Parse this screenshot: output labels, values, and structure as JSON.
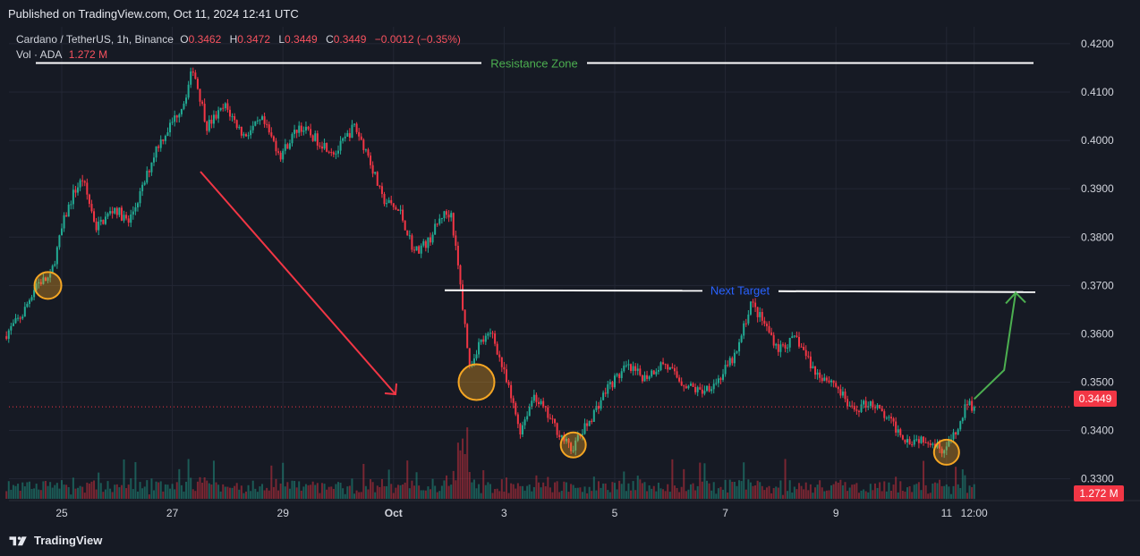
{
  "header": {
    "published": "Published on TradingView.com, Oct 11, 2024 12:41 UTC"
  },
  "legend": {
    "symbol": "Cardano / TetherUS, 1h, Binance",
    "o_label": "O",
    "o_value": "0.3462",
    "h_label": "H",
    "h_value": "0.3472",
    "l_label": "L",
    "l_value": "0.3449",
    "c_label": "C",
    "c_value": "0.3449",
    "change": "−0.0012 (−0.35%)",
    "vol_label": "Vol · ADA",
    "vol_value": "1.272 M"
  },
  "price_badge": "0.3449",
  "volume_badge": "1.272 M",
  "annotations": {
    "resistance_label": "Resistance Zone",
    "target_label": "Next Target"
  },
  "footer": {
    "brand": "TradingView"
  },
  "colors": {
    "background": "#161a24",
    "grid": "#232734",
    "up": "#22ab94",
    "down": "#f23645",
    "resistance_text": "#4caf50",
    "target_text": "#2962ff",
    "arrow_down": "#f23645",
    "arrow_up": "#4caf50",
    "circle": "#f5a623"
  },
  "chart_data": {
    "type": "candlestick",
    "symbol": "Cardano / TetherUS",
    "interval": "1h",
    "exchange": "Binance",
    "y_ticks": [
      0.33,
      0.34,
      0.35,
      0.36,
      0.37,
      0.38,
      0.39,
      0.4,
      0.41,
      0.42
    ],
    "y_tick_labels": [
      "0.3300",
      "0.3400",
      "0.3500",
      "0.3600",
      "0.3700",
      "0.3800",
      "0.3900",
      "0.4000",
      "0.4100",
      "0.4200"
    ],
    "ylim": [
      0.3255,
      0.4235
    ],
    "x_tick_labels": [
      "25",
      "27",
      "29",
      "Oct",
      "3",
      "5",
      "7",
      "9",
      "11",
      "12:00"
    ],
    "x_tick_dates": [
      "2024-09-25",
      "2024-09-27",
      "2024-09-29",
      "2024-10-01",
      "2024-10-03",
      "2024-10-05",
      "2024-10-07",
      "2024-10-09",
      "2024-10-11",
      "2024-10-11 12:00"
    ],
    "path_points": [
      {
        "t": "2024-09-24 00:00",
        "p": 0.3595
      },
      {
        "t": "2024-09-24 08:00",
        "p": 0.364
      },
      {
        "t": "2024-09-24 14:00",
        "p": 0.3705
      },
      {
        "t": "2024-09-24 20:00",
        "p": 0.3715
      },
      {
        "t": "2024-09-25 02:00",
        "p": 0.3835
      },
      {
        "t": "2024-09-25 06:00",
        "p": 0.389
      },
      {
        "t": "2024-09-25 10:00",
        "p": 0.392
      },
      {
        "t": "2024-09-25 16:00",
        "p": 0.382
      },
      {
        "t": "2024-09-26 00:00",
        "p": 0.386
      },
      {
        "t": "2024-09-26 06:00",
        "p": 0.383
      },
      {
        "t": "2024-09-26 12:00",
        "p": 0.39
      },
      {
        "t": "2024-09-26 18:00",
        "p": 0.3985
      },
      {
        "t": "2024-09-27 00:00",
        "p": 0.403
      },
      {
        "t": "2024-09-27 06:00",
        "p": 0.408
      },
      {
        "t": "2024-09-27 10:00",
        "p": 0.415
      },
      {
        "t": "2024-09-27 16:00",
        "p": 0.403
      },
      {
        "t": "2024-09-28 00:00",
        "p": 0.407
      },
      {
        "t": "2024-09-28 08:00",
        "p": 0.401
      },
      {
        "t": "2024-09-28 16:00",
        "p": 0.404
      },
      {
        "t": "2024-09-29 00:00",
        "p": 0.397
      },
      {
        "t": "2024-09-29 08:00",
        "p": 0.403
      },
      {
        "t": "2024-09-29 16:00",
        "p": 0.4
      },
      {
        "t": "2024-09-30 00:00",
        "p": 0.3975
      },
      {
        "t": "2024-09-30 08:00",
        "p": 0.403
      },
      {
        "t": "2024-09-30 14:00",
        "p": 0.397
      },
      {
        "t": "2024-09-30 20:00",
        "p": 0.388
      },
      {
        "t": "2024-10-01 04:00",
        "p": 0.385
      },
      {
        "t": "2024-10-01 10:00",
        "p": 0.377
      },
      {
        "t": "2024-10-01 16:00",
        "p": 0.379
      },
      {
        "t": "2024-10-01 22:00",
        "p": 0.3845
      },
      {
        "t": "2024-10-02 02:00",
        "p": 0.385
      },
      {
        "t": "2024-10-02 06:00",
        "p": 0.37
      },
      {
        "t": "2024-10-02 10:00",
        "p": 0.353
      },
      {
        "t": "2024-10-02 14:00",
        "p": 0.358
      },
      {
        "t": "2024-10-02 20:00",
        "p": 0.36
      },
      {
        "t": "2024-10-03 02:00",
        "p": 0.35
      },
      {
        "t": "2024-10-03 08:00",
        "p": 0.34
      },
      {
        "t": "2024-10-03 14:00",
        "p": 0.3475
      },
      {
        "t": "2024-10-03 22:00",
        "p": 0.3415
      },
      {
        "t": "2024-10-04 06:00",
        "p": 0.336
      },
      {
        "t": "2024-10-04 14:00",
        "p": 0.342
      },
      {
        "t": "2024-10-04 22:00",
        "p": 0.349
      },
      {
        "t": "2024-10-05 06:00",
        "p": 0.353
      },
      {
        "t": "2024-10-05 14:00",
        "p": 0.351
      },
      {
        "t": "2024-10-05 22:00",
        "p": 0.354
      },
      {
        "t": "2024-10-06 06:00",
        "p": 0.35
      },
      {
        "t": "2024-10-06 14:00",
        "p": 0.348
      },
      {
        "t": "2024-10-06 22:00",
        "p": 0.3505
      },
      {
        "t": "2024-10-07 06:00",
        "p": 0.356
      },
      {
        "t": "2024-10-07 12:00",
        "p": 0.3665
      },
      {
        "t": "2024-10-07 18:00",
        "p": 0.362
      },
      {
        "t": "2024-10-08 00:00",
        "p": 0.357
      },
      {
        "t": "2024-10-08 08:00",
        "p": 0.359
      },
      {
        "t": "2024-10-08 16:00",
        "p": 0.352
      },
      {
        "t": "2024-10-09 00:00",
        "p": 0.35
      },
      {
        "t": "2024-10-09 08:00",
        "p": 0.344
      },
      {
        "t": "2024-10-09 16:00",
        "p": 0.346
      },
      {
        "t": "2024-10-10 00:00",
        "p": 0.342
      },
      {
        "t": "2024-10-10 08:00",
        "p": 0.338
      },
      {
        "t": "2024-10-10 16:00",
        "p": 0.3385
      },
      {
        "t": "2024-10-11 00:00",
        "p": 0.336
      },
      {
        "t": "2024-10-11 06:00",
        "p": 0.34
      },
      {
        "t": "2024-10-11 10:00",
        "p": 0.346
      },
      {
        "t": "2024-10-11 12:00",
        "p": 0.3449
      }
    ],
    "volume_spike": {
      "t": "2024-10-02 06:00",
      "relative": 1.0
    },
    "last_close": 0.3449,
    "resistance_level": 0.416,
    "target_level": 0.369,
    "projection": [
      {
        "t": "2024-10-11 12:00",
        "p": 0.3465
      },
      {
        "t": "2024-10-12 01:00",
        "p": 0.3525
      },
      {
        "t": "2024-10-12 06:00",
        "p": 0.3685
      }
    ],
    "highlighted_lows": [
      {
        "t": "2024-09-24 18:00",
        "p": 0.37
      },
      {
        "t": "2024-10-02 12:00",
        "p": 0.35
      },
      {
        "t": "2024-10-04 06:00",
        "p": 0.337
      },
      {
        "t": "2024-10-11 00:00",
        "p": 0.3355
      }
    ]
  }
}
